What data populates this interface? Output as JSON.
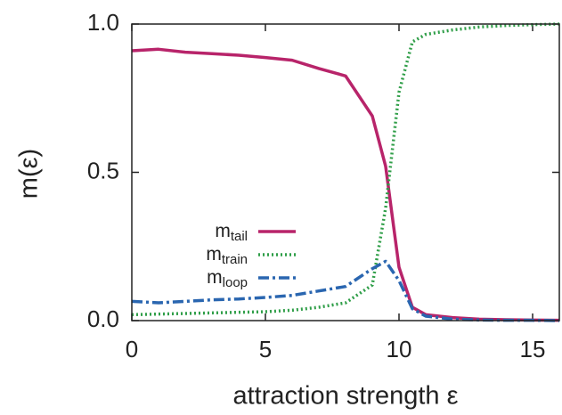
{
  "chart_data": {
    "type": "line",
    "xlabel": "attraction strength ε",
    "ylabel": "m(ε)",
    "x": [
      0,
      1,
      2,
      3,
      4,
      5,
      6,
      7,
      8,
      9,
      9.5,
      10,
      10.5,
      11,
      12,
      13,
      14,
      15,
      16
    ],
    "series": [
      {
        "symbol": "m",
        "name": "tail",
        "color": "#b8246a",
        "dash": "solid",
        "values": [
          0.91,
          0.915,
          0.905,
          0.9,
          0.895,
          0.887,
          0.878,
          0.85,
          0.825,
          0.69,
          0.52,
          0.18,
          0.045,
          0.02,
          0.01,
          0.005,
          0.003,
          0.002,
          0.001
        ]
      },
      {
        "symbol": "m",
        "name": "train",
        "color": "#2f9e48",
        "dash": "dotted",
        "values": [
          0.02,
          0.022,
          0.024,
          0.026,
          0.028,
          0.03,
          0.035,
          0.045,
          0.06,
          0.12,
          0.38,
          0.77,
          0.94,
          0.965,
          0.98,
          0.99,
          0.995,
          0.998,
          1.0
        ]
      },
      {
        "symbol": "m",
        "name": "loop",
        "color": "#2a66b0",
        "dash": "dashdot",
        "values": [
          0.065,
          0.06,
          0.065,
          0.07,
          0.073,
          0.078,
          0.085,
          0.1,
          0.115,
          0.175,
          0.2,
          0.135,
          0.04,
          0.015,
          0.005,
          0.002,
          0.001,
          0.001,
          0.0
        ]
      }
    ],
    "xlim": [
      0,
      16
    ],
    "xticks": [
      0,
      5,
      10,
      15
    ],
    "ylim": [
      0,
      1
    ],
    "yticks": [
      {
        "value": 0,
        "label": "0.0"
      },
      {
        "value": 0.5,
        "label": "0.5"
      },
      {
        "value": 1,
        "label": "1.0"
      }
    ],
    "legend": "center-left"
  }
}
